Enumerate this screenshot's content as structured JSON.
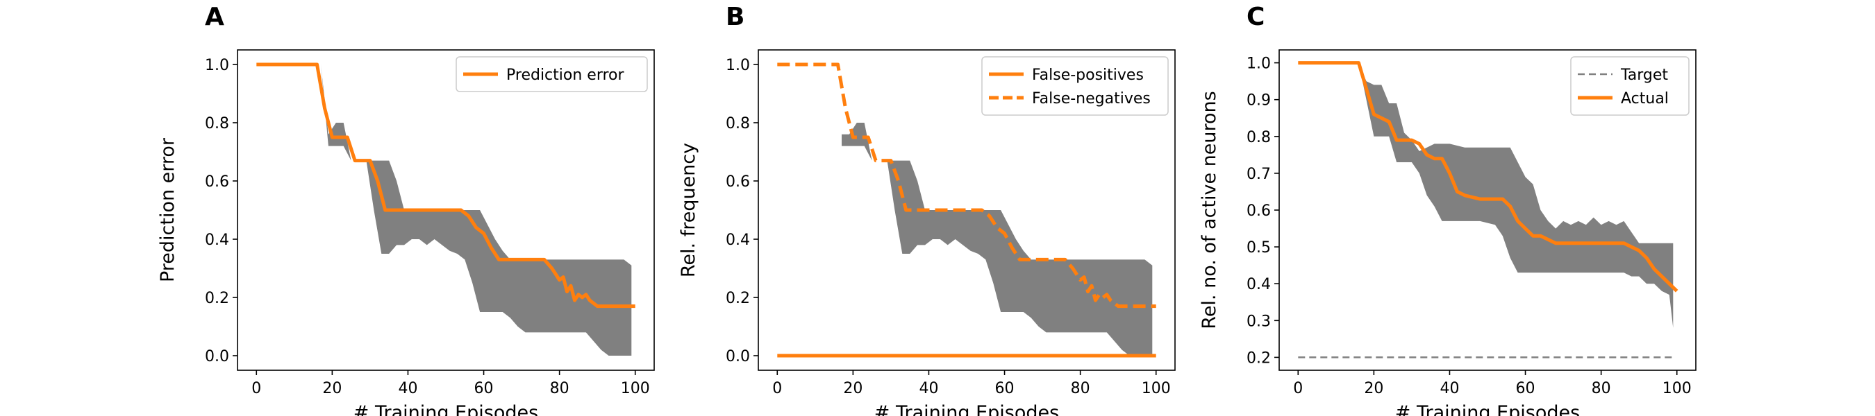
{
  "chart_data": [
    {
      "panel": "A",
      "type": "line",
      "xlabel": "# Training Episodes",
      "ylabel": "Prediction error",
      "xlim": [
        -5,
        105
      ],
      "ylim": [
        -0.05,
        1.05
      ],
      "xticks": [
        0,
        20,
        40,
        60,
        80,
        100
      ],
      "yticks": [
        0.0,
        0.2,
        0.4,
        0.6,
        0.8,
        1.0
      ],
      "ytick_format": 1,
      "grid": false,
      "legend_position": "top-right",
      "colors": {
        "series": "#ff7f0e",
        "band": "#808080"
      },
      "band": {
        "x": [
          0,
          17,
          19,
          21,
          23,
          25,
          27,
          29,
          31,
          33,
          35,
          37,
          39,
          41,
          43,
          45,
          47,
          49,
          51,
          53,
          55,
          57,
          59,
          61,
          63,
          65,
          67,
          69,
          71,
          73,
          75,
          77,
          79,
          81,
          83,
          85,
          87,
          89,
          91,
          93,
          95,
          97,
          99
        ],
        "lower": [
          1.0,
          1.0,
          0.72,
          0.72,
          0.72,
          0.67,
          0.67,
          0.67,
          0.5,
          0.35,
          0.35,
          0.38,
          0.38,
          0.4,
          0.4,
          0.38,
          0.4,
          0.38,
          0.36,
          0.35,
          0.33,
          0.25,
          0.15,
          0.15,
          0.15,
          0.15,
          0.13,
          0.1,
          0.08,
          0.08,
          0.08,
          0.08,
          0.08,
          0.08,
          0.08,
          0.08,
          0.08,
          0.05,
          0.02,
          0.0,
          0.0,
          0.0,
          0.0
        ],
        "upper": [
          1.0,
          1.0,
          0.76,
          0.8,
          0.8,
          0.67,
          0.67,
          0.67,
          0.67,
          0.67,
          0.67,
          0.6,
          0.5,
          0.5,
          0.5,
          0.5,
          0.5,
          0.5,
          0.5,
          0.5,
          0.5,
          0.5,
          0.5,
          0.45,
          0.4,
          0.36,
          0.33,
          0.33,
          0.33,
          0.33,
          0.33,
          0.33,
          0.33,
          0.33,
          0.33,
          0.33,
          0.33,
          0.33,
          0.33,
          0.33,
          0.33,
          0.33,
          0.31
        ]
      },
      "series": [
        {
          "name": "Prediction error",
          "style": "solid",
          "x": [
            0,
            16,
            18,
            20,
            22,
            24,
            26,
            28,
            30,
            32,
            34,
            36,
            40,
            44,
            48,
            52,
            54,
            56,
            58,
            60,
            62,
            64,
            66,
            70,
            74,
            76,
            78,
            79,
            80,
            81,
            82,
            83,
            84,
            85,
            86,
            87,
            88,
            90,
            94,
            98,
            100
          ],
          "y": [
            1.0,
            1.0,
            0.85,
            0.75,
            0.75,
            0.75,
            0.67,
            0.67,
            0.67,
            0.6,
            0.5,
            0.5,
            0.5,
            0.5,
            0.5,
            0.5,
            0.5,
            0.48,
            0.44,
            0.42,
            0.37,
            0.33,
            0.33,
            0.33,
            0.33,
            0.33,
            0.3,
            0.28,
            0.26,
            0.27,
            0.22,
            0.24,
            0.19,
            0.21,
            0.2,
            0.21,
            0.19,
            0.17,
            0.17,
            0.17,
            0.17
          ]
        }
      ]
    },
    {
      "panel": "B",
      "type": "line",
      "xlabel": "# Training Episodes",
      "ylabel": "Rel. frequency",
      "xlim": [
        -5,
        105
      ],
      "ylim": [
        -0.05,
        1.05
      ],
      "xticks": [
        0,
        20,
        40,
        60,
        80,
        100
      ],
      "yticks": [
        0.0,
        0.2,
        0.4,
        0.6,
        0.8,
        1.0
      ],
      "ytick_format": 1,
      "grid": false,
      "legend_position": "top-right",
      "colors": {
        "series": "#ff7f0e",
        "band": "#808080"
      },
      "band": {
        "x": [
          17,
          19,
          21,
          23,
          25,
          27,
          29,
          31,
          33,
          35,
          37,
          39,
          41,
          43,
          45,
          47,
          49,
          51,
          53,
          55,
          57,
          59,
          61,
          63,
          65,
          67,
          69,
          71,
          73,
          75,
          77,
          79,
          81,
          83,
          85,
          87,
          89,
          91,
          93,
          95,
          97,
          99
        ],
        "lower": [
          0.72,
          0.72,
          0.72,
          0.72,
          0.67,
          0.67,
          0.67,
          0.5,
          0.35,
          0.35,
          0.38,
          0.38,
          0.4,
          0.4,
          0.38,
          0.4,
          0.38,
          0.36,
          0.35,
          0.33,
          0.25,
          0.15,
          0.15,
          0.15,
          0.15,
          0.13,
          0.1,
          0.08,
          0.08,
          0.08,
          0.08,
          0.08,
          0.08,
          0.08,
          0.08,
          0.08,
          0.05,
          0.02,
          0.0,
          0.0,
          0.0,
          0.0
        ],
        "upper": [
          0.76,
          0.76,
          0.8,
          0.8,
          0.67,
          0.67,
          0.67,
          0.67,
          0.67,
          0.67,
          0.6,
          0.5,
          0.5,
          0.5,
          0.5,
          0.5,
          0.5,
          0.5,
          0.5,
          0.5,
          0.5,
          0.5,
          0.45,
          0.4,
          0.36,
          0.33,
          0.33,
          0.33,
          0.33,
          0.33,
          0.33,
          0.33,
          0.33,
          0.33,
          0.33,
          0.33,
          0.33,
          0.33,
          0.33,
          0.33,
          0.33,
          0.31
        ]
      },
      "series": [
        {
          "name": "False-positives",
          "style": "solid",
          "x": [
            0,
            100
          ],
          "y": [
            0.0,
            0.0
          ]
        },
        {
          "name": "False-negatives",
          "style": "dashed",
          "x": [
            0,
            16,
            18,
            20,
            22,
            24,
            26,
            28,
            30,
            32,
            34,
            36,
            40,
            44,
            48,
            52,
            54,
            56,
            58,
            60,
            62,
            64,
            66,
            70,
            74,
            76,
            78,
            79,
            80,
            81,
            82,
            83,
            84,
            85,
            86,
            87,
            88,
            90,
            94,
            98,
            100
          ],
          "y": [
            1.0,
            1.0,
            0.85,
            0.75,
            0.75,
            0.75,
            0.67,
            0.67,
            0.67,
            0.6,
            0.5,
            0.5,
            0.5,
            0.5,
            0.5,
            0.5,
            0.5,
            0.48,
            0.44,
            0.42,
            0.37,
            0.33,
            0.33,
            0.33,
            0.33,
            0.33,
            0.3,
            0.28,
            0.26,
            0.27,
            0.22,
            0.24,
            0.19,
            0.21,
            0.2,
            0.21,
            0.19,
            0.17,
            0.17,
            0.17,
            0.17
          ]
        }
      ]
    },
    {
      "panel": "C",
      "type": "line",
      "xlabel": "# Training Episodes",
      "ylabel": "Rel. no. of active neurons",
      "xlim": [
        -5,
        105
      ],
      "ylim": [
        0.165,
        1.035
      ],
      "xticks": [
        0,
        20,
        40,
        60,
        80,
        100
      ],
      "yticks": [
        0.2,
        0.3,
        0.4,
        0.5,
        0.6,
        0.7,
        0.8,
        0.9,
        1.0
      ],
      "ytick_format": 1,
      "grid": false,
      "legend_position": "top-right",
      "colors": {
        "series": "#ff7f0e",
        "target": "#808080",
        "band": "#808080"
      },
      "band": {
        "x": [
          0,
          16,
          18,
          20,
          22,
          24,
          26,
          28,
          30,
          32,
          34,
          36,
          38,
          40,
          44,
          48,
          52,
          54,
          56,
          58,
          60,
          62,
          64,
          66,
          68,
          70,
          72,
          74,
          76,
          78,
          80,
          82,
          84,
          86,
          88,
          90,
          92,
          94,
          96,
          98,
          99
        ],
        "lower": [
          1.0,
          1.0,
          0.9,
          0.8,
          0.8,
          0.8,
          0.73,
          0.73,
          0.73,
          0.7,
          0.64,
          0.61,
          0.57,
          0.57,
          0.57,
          0.57,
          0.56,
          0.53,
          0.47,
          0.43,
          0.43,
          0.43,
          0.43,
          0.43,
          0.43,
          0.43,
          0.43,
          0.43,
          0.43,
          0.43,
          0.43,
          0.43,
          0.43,
          0.43,
          0.42,
          0.42,
          0.4,
          0.4,
          0.38,
          0.37,
          0.28
        ],
        "upper": [
          1.0,
          1.0,
          0.95,
          0.94,
          0.94,
          0.89,
          0.89,
          0.81,
          0.79,
          0.76,
          0.77,
          0.78,
          0.78,
          0.78,
          0.77,
          0.77,
          0.77,
          0.77,
          0.77,
          0.73,
          0.69,
          0.67,
          0.6,
          0.57,
          0.55,
          0.57,
          0.56,
          0.57,
          0.56,
          0.58,
          0.56,
          0.57,
          0.56,
          0.57,
          0.54,
          0.51,
          0.51,
          0.51,
          0.51,
          0.51,
          0.51
        ]
      },
      "series": [
        {
          "name": "Target",
          "style": "dashed",
          "x": [
            0,
            99
          ],
          "y": [
            0.2,
            0.2
          ]
        },
        {
          "name": "Actual",
          "style": "solid",
          "x": [
            0,
            16,
            18,
            20,
            22,
            24,
            26,
            28,
            30,
            32,
            34,
            36,
            38,
            40,
            42,
            44,
            48,
            52,
            54,
            56,
            58,
            60,
            62,
            64,
            66,
            68,
            70,
            72,
            76,
            80,
            84,
            86,
            88,
            90,
            92,
            94,
            96,
            98,
            100
          ],
          "y": [
            1.0,
            1.0,
            0.93,
            0.86,
            0.85,
            0.84,
            0.79,
            0.79,
            0.79,
            0.78,
            0.75,
            0.74,
            0.74,
            0.7,
            0.65,
            0.64,
            0.63,
            0.63,
            0.63,
            0.61,
            0.57,
            0.55,
            0.53,
            0.53,
            0.52,
            0.51,
            0.51,
            0.51,
            0.51,
            0.51,
            0.51,
            0.51,
            0.5,
            0.49,
            0.47,
            0.44,
            0.42,
            0.4,
            0.38
          ]
        }
      ]
    }
  ]
}
